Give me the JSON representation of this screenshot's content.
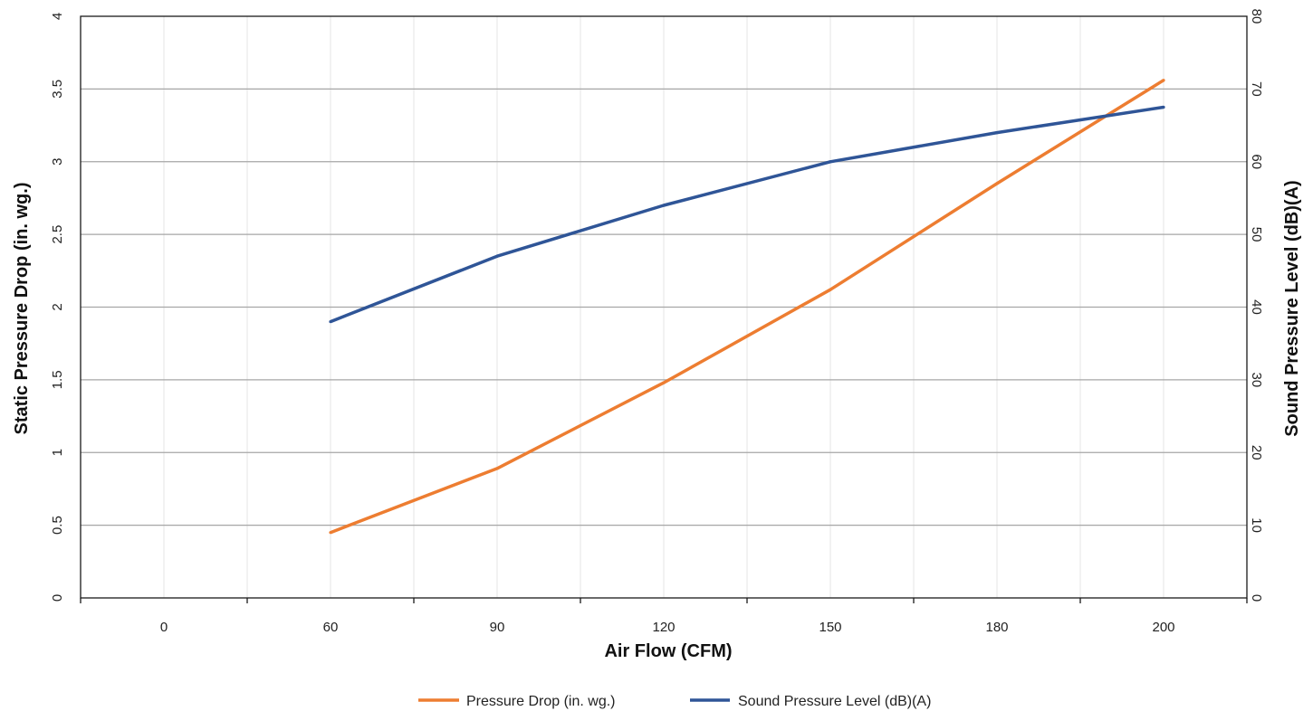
{
  "chart_data": {
    "type": "line",
    "xlabel": "Air Flow (CFM)",
    "ylabel_left": "Static Pressure Drop (in. wg.)",
    "ylabel_right": "Sound Pressure Level (dB)(A)",
    "categories": [
      "0",
      "60",
      "90",
      "120",
      "150",
      "180",
      "200"
    ],
    "ylim_left": [
      0,
      4
    ],
    "ylim_right": [
      0,
      80
    ],
    "yticks_left": [
      "0",
      "0.5",
      "1",
      "1.5",
      "2",
      "2.5",
      "3",
      "3.5",
      "4"
    ],
    "yticks_right": [
      "0",
      "10",
      "20",
      "30",
      "40",
      "50",
      "60",
      "70",
      "80"
    ],
    "grid": true,
    "legend_position": "bottom",
    "series": [
      {
        "name": "Pressure Drop (in. wg.)",
        "axis": "left",
        "color": "#ED7D31",
        "values": [
          null,
          0.45,
          0.89,
          1.48,
          2.12,
          2.85,
          3.56
        ]
      },
      {
        "name": "Sound Pressure Level (dB)(A)",
        "axis": "right",
        "color": "#2F5597",
        "values": [
          null,
          38,
          47,
          54,
          60,
          64,
          67.5
        ]
      }
    ]
  }
}
